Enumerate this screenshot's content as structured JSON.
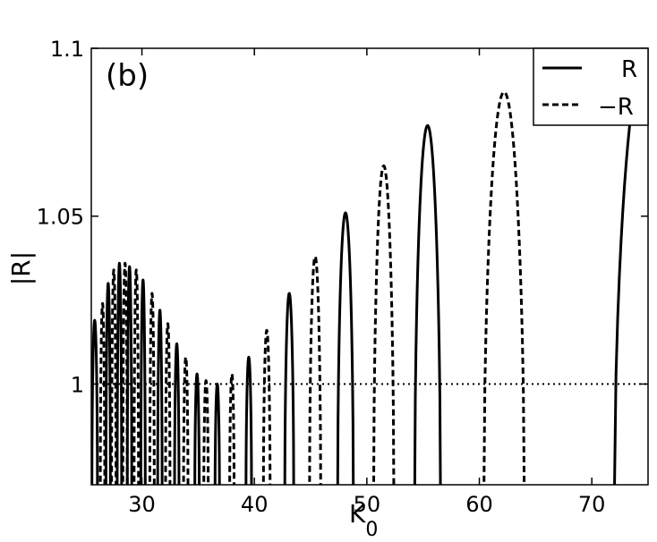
{
  "chart_data": {
    "type": "line",
    "panel_label": "(b)",
    "xlabel": "K",
    "xlabel_subscript": "0",
    "ylabel": "|R|",
    "xlim": [
      25.5,
      75
    ],
    "ylim": [
      0.97,
      1.1
    ],
    "xticks": [
      30,
      40,
      50,
      60,
      70
    ],
    "yticks": [
      1.0,
      1.05,
      1.1
    ],
    "ytick_labels": [
      "1",
      "1.05",
      "1.1"
    ],
    "grid": false,
    "legend_position": "top-right",
    "reference_line": {
      "y": 1.0,
      "style": "dotted"
    },
    "series": [
      {
        "name": "R",
        "style": "solid",
        "lobes": [
          {
            "center": 25.8,
            "width": 0.5,
            "peak": 1.019
          },
          {
            "center": 27.0,
            "width": 0.4,
            "peak": 1.03
          },
          {
            "center": 28.0,
            "width": 0.4,
            "peak": 1.036
          },
          {
            "center": 28.9,
            "width": 0.4,
            "peak": 1.035
          },
          {
            "center": 30.1,
            "width": 0.4,
            "peak": 1.031
          },
          {
            "center": 31.6,
            "width": 0.4,
            "peak": 1.022
          },
          {
            "center": 33.1,
            "width": 0.4,
            "peak": 1.012
          },
          {
            "center": 34.9,
            "width": 0.4,
            "peak": 1.003
          },
          {
            "center": 36.7,
            "width": 0.4,
            "peak": 1.0
          },
          {
            "center": 39.5,
            "width": 0.5,
            "peak": 1.008
          },
          {
            "center": 43.1,
            "width": 0.8,
            "peak": 1.027
          },
          {
            "center": 48.1,
            "width": 1.4,
            "peak": 1.051
          },
          {
            "center": 55.4,
            "width": 2.3,
            "peak": 1.077
          },
          {
            "center": 75.0,
            "width": 6.0,
            "peak": 1.101
          }
        ]
      },
      {
        "name": "−R",
        "style": "dashed",
        "lobes": [
          {
            "center": 26.5,
            "width": 0.4,
            "peak": 1.024
          },
          {
            "center": 27.5,
            "width": 0.4,
            "peak": 1.034
          },
          {
            "center": 28.5,
            "width": 0.4,
            "peak": 1.036
          },
          {
            "center": 29.5,
            "width": 0.4,
            "peak": 1.034
          },
          {
            "center": 30.9,
            "width": 0.4,
            "peak": 1.027
          },
          {
            "center": 32.3,
            "width": 0.4,
            "peak": 1.018
          },
          {
            "center": 33.9,
            "width": 0.4,
            "peak": 1.008
          },
          {
            "center": 35.7,
            "width": 0.4,
            "peak": 1.001
          },
          {
            "center": 38.0,
            "width": 0.4,
            "peak": 1.003
          },
          {
            "center": 41.1,
            "width": 0.6,
            "peak": 1.016
          },
          {
            "center": 45.4,
            "width": 1.0,
            "peak": 1.038
          },
          {
            "center": 51.5,
            "width": 1.8,
            "peak": 1.065
          },
          {
            "center": 62.2,
            "width": 3.6,
            "peak": 1.087
          }
        ]
      }
    ]
  }
}
